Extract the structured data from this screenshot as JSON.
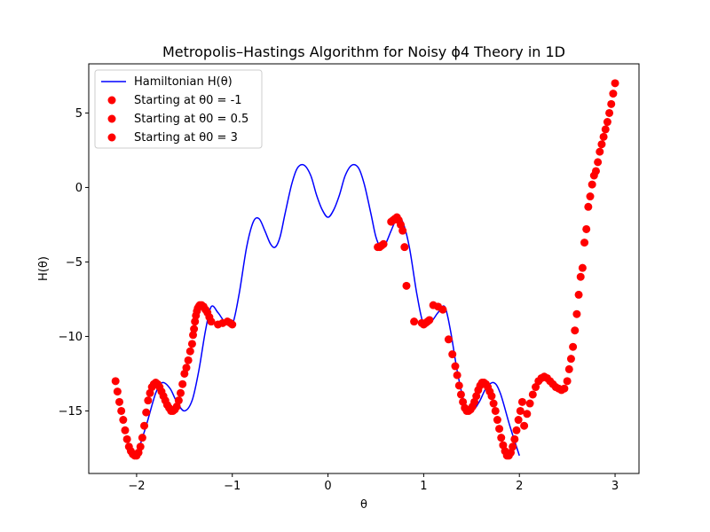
{
  "chart_data": {
    "type": "line+scatter",
    "title": "Metropolis–Hastings Algorithm for Noisy ϕ4 Theory in 1D",
    "xlabel": "θ",
    "ylabel": "H(θ)",
    "xlim": [
      -2.5,
      3.25
    ],
    "ylim": [
      -19.2,
      8.3
    ],
    "xticks": [
      -2,
      -1,
      0,
      1,
      2,
      3
    ],
    "xtick_labels": [
      "−2",
      "−1",
      "0",
      "1",
      "2",
      "3"
    ],
    "yticks": [
      -15,
      -10,
      -5,
      0,
      5
    ],
    "ytick_labels": [
      "−15",
      "−10",
      "−5",
      "0",
      "5"
    ],
    "colors": {
      "line": "#0000ff",
      "scatter": "#ff0000"
    },
    "legend": {
      "placement": "upper-left",
      "entries": [
        {
          "label": "Hamiltonian H(θ)",
          "kind": "line"
        },
        {
          "label": "Starting at θ0 = -1",
          "kind": "scatter"
        },
        {
          "label": "Starting at θ0 = 0.5",
          "kind": "scatter"
        },
        {
          "label": "Starting at θ0 = 3",
          "kind": "scatter"
        }
      ]
    },
    "series": [
      {
        "name": "Hamiltonian H(θ)",
        "kind": "line",
        "x": [
          -2.0,
          -1.9,
          -1.8,
          -1.73,
          -1.65,
          -1.58,
          -1.5,
          -1.42,
          -1.35,
          -1.28,
          -1.22,
          -1.15,
          -1.08,
          -1.0,
          -0.93,
          -0.85,
          -0.78,
          -0.72,
          -0.66,
          -0.6,
          -0.55,
          -0.5,
          -0.45,
          -0.38,
          -0.32,
          -0.25,
          -0.18,
          -0.12,
          -0.06,
          0.0,
          0.06,
          0.12,
          0.18,
          0.25,
          0.32,
          0.38,
          0.45,
          0.5,
          0.55,
          0.6,
          0.66,
          0.72,
          0.78,
          0.85,
          0.93,
          1.0,
          1.08,
          1.15,
          1.22,
          1.28,
          1.35,
          1.42,
          1.5,
          1.58,
          1.65,
          1.73,
          1.8,
          1.9,
          2.0
        ],
        "y": [
          -18.0,
          -16.0,
          -13.8,
          -13.1,
          -13.5,
          -14.4,
          -15.0,
          -14.3,
          -12.3,
          -9.6,
          -8.0,
          -8.4,
          -9.0,
          -9.2,
          -7.2,
          -4.0,
          -2.3,
          -2.1,
          -2.9,
          -3.8,
          -4.0,
          -3.3,
          -1.8,
          0.2,
          1.3,
          1.5,
          0.8,
          -0.5,
          -1.5,
          -2.0,
          -1.5,
          -0.5,
          0.8,
          1.5,
          1.3,
          0.2,
          -1.8,
          -3.3,
          -4.0,
          -3.8,
          -2.9,
          -2.1,
          -2.3,
          -4.0,
          -7.2,
          -9.2,
          -9.0,
          -8.4,
          -8.0,
          -9.6,
          -12.3,
          -14.3,
          -15.0,
          -14.4,
          -13.5,
          -13.1,
          -13.8,
          -16.0,
          -18.0
        ]
      },
      {
        "name": "Starting at θ0 = -1",
        "kind": "scatter",
        "x": [
          -2.22,
          -2.2,
          -2.18,
          -2.16,
          -2.14,
          -2.12,
          -2.1,
          -2.08,
          -2.06,
          -2.04,
          -2.02,
          -2.0,
          -1.98,
          -1.96,
          -1.94,
          -1.92,
          -1.9,
          -1.88,
          -1.86,
          -1.84,
          -1.82,
          -1.8,
          -1.78,
          -1.76,
          -1.74,
          -1.72,
          -1.7,
          -1.68,
          -1.66,
          -1.64,
          -1.62,
          -1.6,
          -1.58,
          -1.56,
          -1.54,
          -1.52,
          -1.5,
          -1.48,
          -1.46,
          -1.44,
          -1.42,
          -1.41,
          -1.4,
          -1.39,
          -1.38,
          -1.37,
          -1.36,
          -1.35,
          -1.34,
          -1.32,
          -1.3,
          -1.28,
          -1.26,
          -1.24,
          -1.22,
          -1.15,
          -1.1,
          -1.05,
          -1.02,
          -1.0
        ],
        "y": [
          -13.0,
          -13.7,
          -14.4,
          -15.0,
          -15.6,
          -16.3,
          -16.9,
          -17.4,
          -17.7,
          -17.9,
          -18.0,
          -18.0,
          -17.8,
          -17.4,
          -16.8,
          -16.0,
          -15.1,
          -14.3,
          -13.8,
          -13.4,
          -13.2,
          -13.1,
          -13.2,
          -13.4,
          -13.7,
          -14.0,
          -14.3,
          -14.6,
          -14.8,
          -15.0,
          -15.0,
          -14.9,
          -14.7,
          -14.3,
          -13.8,
          -13.2,
          -12.5,
          -12.1,
          -11.6,
          -11.0,
          -10.5,
          -9.9,
          -9.5,
          -9.0,
          -8.6,
          -8.3,
          -8.1,
          -8.0,
          -7.9,
          -7.9,
          -8.0,
          -8.2,
          -8.4,
          -8.7,
          -9.0,
          -9.2,
          -9.1,
          -9.0,
          -9.1,
          -9.2
        ]
      },
      {
        "name": "Starting at θ0 = 0.5",
        "kind": "scatter",
        "x": [
          0.52,
          0.54,
          0.56,
          0.58,
          0.66,
          0.68,
          0.7,
          0.72,
          0.74,
          0.76,
          0.78,
          0.8,
          0.82,
          0.9,
          0.98,
          1.0,
          1.02,
          1.04,
          1.06,
          1.1,
          1.15,
          1.2,
          1.26,
          1.3,
          1.33,
          1.35,
          1.37,
          1.39,
          1.41,
          1.43,
          1.45,
          1.47,
          1.49,
          1.51,
          1.53,
          1.55,
          1.57,
          1.59,
          1.61,
          1.63,
          1.65,
          1.67,
          1.69,
          1.71,
          1.73,
          1.75,
          1.77,
          1.79,
          1.81,
          1.83,
          1.85,
          1.87,
          1.89,
          1.91,
          1.93,
          1.95,
          1.97,
          1.99,
          2.01,
          2.03
        ],
        "y": [
          -4.0,
          -4.0,
          -3.9,
          -3.8,
          -2.3,
          -2.2,
          -2.1,
          -2.0,
          -2.2,
          -2.5,
          -2.9,
          -4.0,
          -6.6,
          -9.0,
          -9.1,
          -9.2,
          -9.1,
          -9.0,
          -8.9,
          -7.9,
          -8.0,
          -8.2,
          -10.2,
          -11.2,
          -12.0,
          -12.6,
          -13.3,
          -13.9,
          -14.4,
          -14.8,
          -15.0,
          -15.0,
          -14.9,
          -14.7,
          -14.4,
          -14.0,
          -13.6,
          -13.3,
          -13.1,
          -13.1,
          -13.2,
          -13.4,
          -13.7,
          -14.0,
          -14.5,
          -15.0,
          -15.6,
          -16.2,
          -16.8,
          -17.3,
          -17.7,
          -18.0,
          -18.0,
          -17.8,
          -17.4,
          -16.9,
          -16.3,
          -15.6,
          -15.0,
          -14.4
        ]
      },
      {
        "name": "Starting at θ0 = 3",
        "kind": "scatter",
        "x": [
          2.05,
          2.08,
          2.11,
          2.14,
          2.17,
          2.2,
          2.23,
          2.26,
          2.29,
          2.32,
          2.35,
          2.38,
          2.41,
          2.44,
          2.47,
          2.5,
          2.52,
          2.54,
          2.56,
          2.58,
          2.6,
          2.62,
          2.64,
          2.66,
          2.68,
          2.7,
          2.72,
          2.74,
          2.76,
          2.78,
          2.8,
          2.82,
          2.84,
          2.86,
          2.88,
          2.9,
          2.92,
          2.94,
          2.96,
          2.98,
          3.0
        ],
        "y": [
          -16.0,
          -15.2,
          -14.5,
          -13.9,
          -13.4,
          -13.0,
          -12.8,
          -12.7,
          -12.8,
          -13.0,
          -13.2,
          -13.4,
          -13.5,
          -13.6,
          -13.5,
          -13.0,
          -12.2,
          -11.5,
          -10.7,
          -9.6,
          -8.5,
          -7.2,
          -6.0,
          -5.4,
          -3.7,
          -2.8,
          -1.3,
          -0.6,
          0.2,
          0.8,
          1.1,
          1.7,
          2.4,
          2.9,
          3.4,
          3.9,
          4.4,
          5.0,
          5.6,
          6.3,
          7.0
        ]
      }
    ]
  }
}
